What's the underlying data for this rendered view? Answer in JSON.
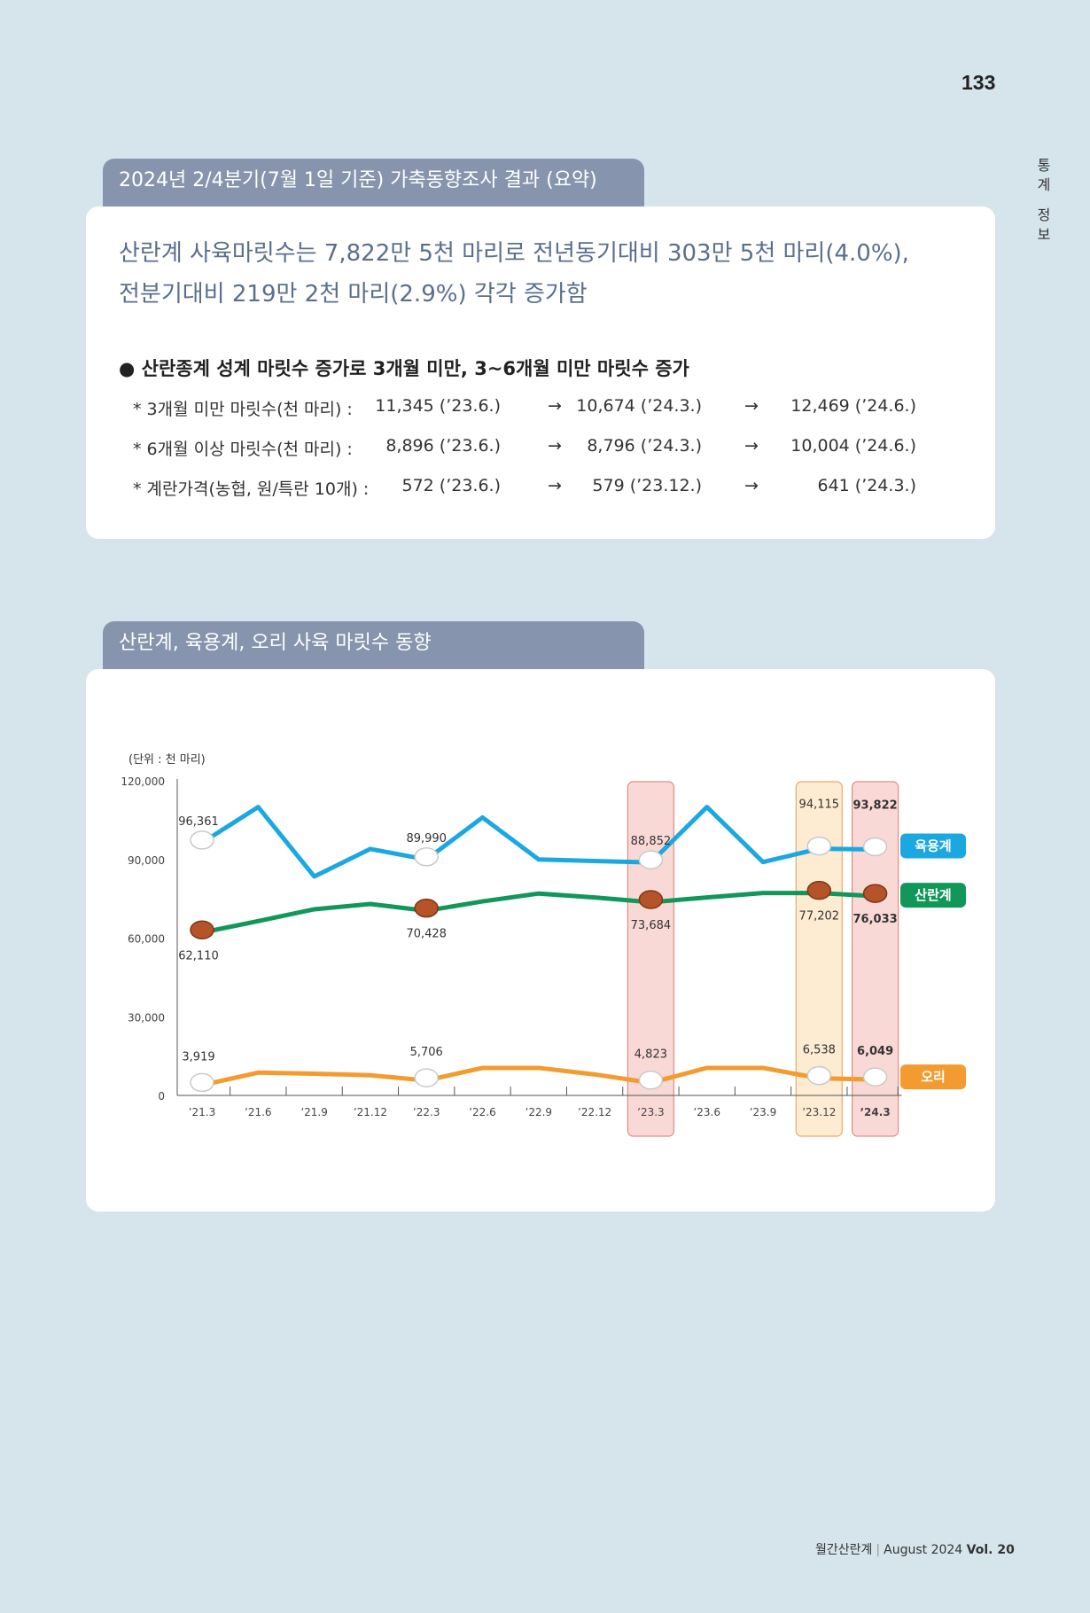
{
  "page_number": "133",
  "side_label": [
    "통",
    "계",
    "",
    "정",
    "보"
  ],
  "section1": {
    "tab_title": "2024년 2/4분기(7월 1일 기준) 가축동향조사 결과 (요약)",
    "headline_line1": "산란계 사육마릿수는 7,822만 5천 마리로 전년동기대비 303만 5천 마리(4.0%),",
    "headline_line2": "전분기대비 219만 2천 마리(2.9%) 각각 증가함",
    "bullet": "● 산란종계 성계 마릿수 증가로 3개월 미만,  3~6개월 미만 마릿수 증가",
    "rows": [
      {
        "label": "* 3개월 미만 마릿수(천 마리) :",
        "v1": "11,345 (ʼ23.6.)",
        "arrow1": "→",
        "v2": "10,674 (ʼ24.3.)",
        "arrow2": "→",
        "v3": "12,469 (ʼ24.6.)"
      },
      {
        "label": "* 6개월 이상 마릿수(천 마리) :",
        "v1": "8,896 (ʼ23.6.)",
        "arrow1": "→",
        "v2": "8,796 (ʼ24.3.)",
        "arrow2": "→",
        "v3": "10,004 (ʼ24.6.)"
      },
      {
        "label": "* 계란가격(농협, 원/특란 10개) :",
        "v1": "572 (ʼ23.6.)",
        "arrow1": "→",
        "v2": "579 (ʼ23.12.)",
        "arrow2": "→",
        "v3": "641 (ʼ24.3.)"
      }
    ]
  },
  "section2": {
    "tab_title": "산란계, 육용계, 오리 사육 마릿수 동향"
  },
  "chart_data": {
    "type": "line",
    "unit_label": "(단위 :  천 마리)",
    "x": [
      "ʼ21.3",
      "ʼ21.6",
      "ʼ21.9",
      "ʼ21.12",
      "ʼ22.3",
      "ʼ22.6",
      "ʼ22.9",
      "ʼ22.12",
      "ʼ23.3",
      "ʼ23.6",
      "ʼ23.9",
      "ʼ23.12",
      "ʼ24.3"
    ],
    "ylim": [
      0,
      120000
    ],
    "yticks": [
      0,
      30000,
      60000,
      90000,
      120000
    ],
    "ytick_labels": [
      "0",
      "30,000",
      "60,000",
      "90,000",
      "120,000"
    ],
    "highlight_periods": [
      "ʼ23.3",
      "ʼ23.12",
      "ʼ24.3"
    ],
    "bold_period": "ʼ24.3",
    "series": [
      {
        "name": "육용계",
        "color": "#1ba8e0",
        "values": [
          96361,
          110000,
          83500,
          94000,
          89990,
          106000,
          90000,
          89400,
          88852,
          110000,
          89000,
          94115,
          93822
        ],
        "labels": [
          {
            "i": 0,
            "text": "96,361"
          },
          {
            "i": 4,
            "text": "89,990"
          },
          {
            "i": 8,
            "text": "88,852"
          },
          {
            "i": 11,
            "text": "94,115"
          },
          {
            "i": 12,
            "text": "93,822"
          }
        ]
      },
      {
        "name": "산란계",
        "color": "#12975a",
        "values": [
          62110,
          66500,
          71000,
          73000,
          70428,
          74000,
          77000,
          75500,
          73684,
          75500,
          77200,
          77202,
          76033
        ],
        "labels": [
          {
            "i": 0,
            "text": "62,110"
          },
          {
            "i": 4,
            "text": "70,428"
          },
          {
            "i": 8,
            "text": "73,684"
          },
          {
            "i": 11,
            "text": "77,202"
          },
          {
            "i": 12,
            "text": "76,033"
          }
        ]
      },
      {
        "name": "오리",
        "color": "#f39b2f",
        "values": [
          3919,
          8700,
          8300,
          7700,
          5706,
          10500,
          10500,
          8000,
          4823,
          10500,
          10500,
          6538,
          6049
        ],
        "labels": [
          {
            "i": 0,
            "text": "3,919"
          },
          {
            "i": 4,
            "text": "5,706"
          },
          {
            "i": 8,
            "text": "4,823"
          },
          {
            "i": 11,
            "text": "6,538"
          },
          {
            "i": 12,
            "text": "6,049"
          }
        ]
      }
    ]
  },
  "footer": {
    "magazine": "월간산란계",
    "separator": "|",
    "issue": "August 2024",
    "vol": "Vol. 20"
  },
  "colors": {
    "background": "#d6e4ec",
    "tab": "#8695ad",
    "headline": "#5a6f8c"
  }
}
